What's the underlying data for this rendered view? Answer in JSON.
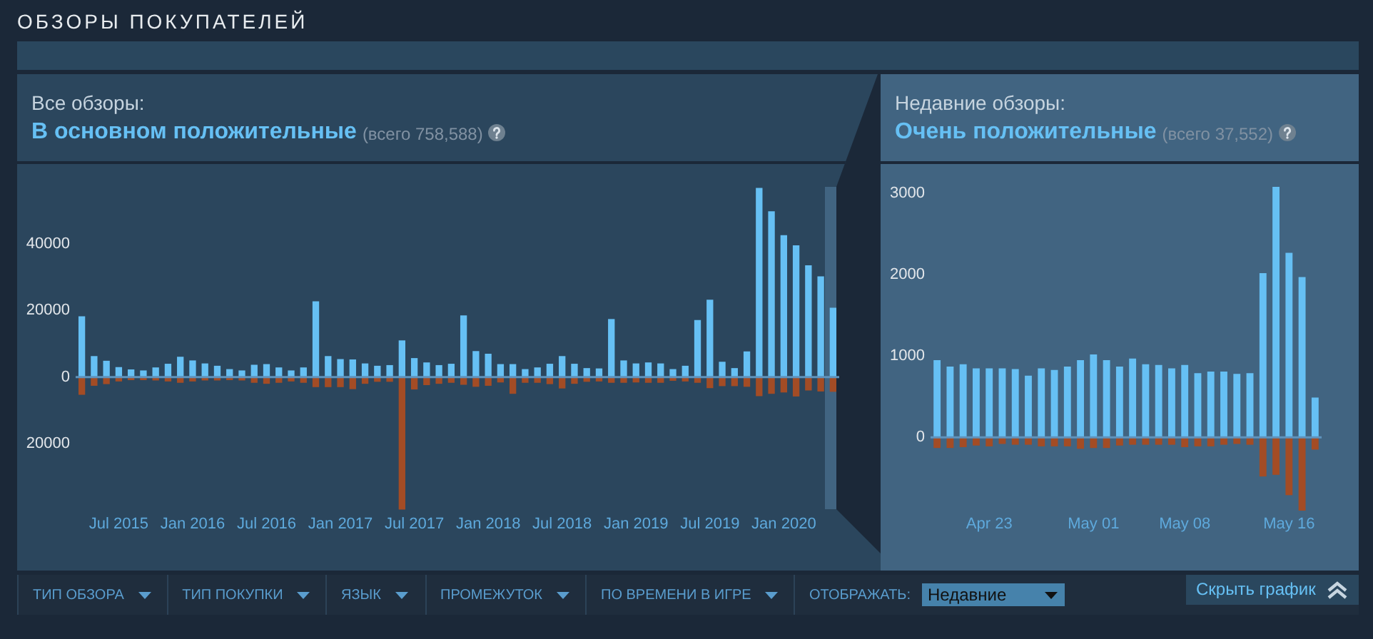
{
  "chart_data": [
    {
      "type": "other",
      "title": "ОБЗОРЫ ПОКУПАТЕЛЕЙ"
    },
    {
      "type": "bar",
      "stacked": true,
      "title": "Все обзоры:",
      "subtitle": "В основном положительные",
      "annotations": [
        "(всего 758,588)"
      ],
      "categories": [
        null,
        null,
        null,
        "Jul 2015",
        null,
        null,
        null,
        null,
        null,
        "Jan 2016",
        null,
        null,
        null,
        null,
        null,
        "Jul 2016",
        null,
        null,
        null,
        null,
        null,
        "Jan 2017",
        null,
        null,
        null,
        null,
        null,
        "Jul 2017",
        null,
        null,
        null,
        null,
        null,
        "Jan 2018",
        null,
        null,
        null,
        null,
        null,
        "Jul 2018",
        null,
        null,
        null,
        null,
        null,
        "Jan 2019",
        null,
        null,
        null,
        null,
        null,
        "Jul 2019",
        null,
        null,
        null,
        null,
        null,
        "Jan 2020",
        null,
        null,
        null,
        null
      ],
      "series": [
        {
          "color": "#66c0f4",
          "values": [
            18200,
            6300,
            4900,
            3000,
            2300,
            2000,
            2900,
            4000,
            6100,
            5000,
            4100,
            3400,
            2400,
            2000,
            3700,
            3900,
            2900,
            2000,
            2900,
            22700,
            6300,
            5400,
            5300,
            4100,
            3400,
            3600,
            11000,
            5700,
            4400,
            3600,
            4000,
            18500,
            7800,
            7000,
            3900,
            3900,
            2400,
            2900,
            4000,
            6300,
            4000,
            2700,
            2600,
            17400,
            5000,
            4100,
            4400,
            4100,
            2400,
            3400,
            17100,
            23200,
            4600,
            2700,
            7700,
            56700,
            49700,
            42500,
            39500,
            33500,
            30200,
            20800
          ]
        },
        {
          "color": "#a34c25",
          "values": [
            -5300,
            -2600,
            -2100,
            -1300,
            -900,
            -900,
            -1000,
            -1300,
            -1700,
            -1300,
            -1000,
            -1000,
            -900,
            -1000,
            -1700,
            -2000,
            -1700,
            -1300,
            -1700,
            -3000,
            -3000,
            -3000,
            -3600,
            -2000,
            -1400,
            -1400,
            -39700,
            -3700,
            -2400,
            -2000,
            -1700,
            -2300,
            -2900,
            -2600,
            -1600,
            -5000,
            -1700,
            -1700,
            -2100,
            -3400,
            -2000,
            -1400,
            -1300,
            -1700,
            -1700,
            -1600,
            -1700,
            -1700,
            -1100,
            -1300,
            -1700,
            -3300,
            -2700,
            -2700,
            -2900,
            -5700,
            -5000,
            -4600,
            -5800,
            -4000,
            -4300,
            -4400
          ]
        }
      ],
      "ylim": [
        -40000,
        57000
      ],
      "yticks": [
        {
          "value": -20000,
          "label": "20000"
        },
        0,
        20000,
        40000
      ],
      "ref_lines": [
        {
          "axis": "y",
          "value": 0,
          "color": "#5f93bd"
        }
      ]
    },
    {
      "type": "bar",
      "stacked": true,
      "title": "Недавние обзоры:",
      "subtitle": "Очень положительные",
      "annotations": [
        "(всего 37,552)"
      ],
      "categories": [
        null,
        null,
        null,
        null,
        "Apr 23",
        null,
        null,
        null,
        null,
        null,
        null,
        null,
        "May 01",
        null,
        null,
        null,
        null,
        null,
        null,
        "May 08",
        null,
        null,
        null,
        null,
        null,
        null,
        null,
        "May 16",
        null,
        null
      ],
      "series": [
        {
          "color": "#66c0f4",
          "values": [
            950,
            870,
            900,
            850,
            850,
            850,
            840,
            760,
            850,
            830,
            870,
            950,
            1020,
            950,
            870,
            970,
            900,
            890,
            850,
            890,
            790,
            810,
            810,
            780,
            790,
            2020,
            3080,
            2270,
            1970,
            490
          ]
        },
        {
          "color": "#a34c25",
          "values": [
            -130,
            -130,
            -120,
            -100,
            -110,
            -80,
            -90,
            -90,
            -110,
            -110,
            -110,
            -140,
            -130,
            -130,
            -100,
            -90,
            -90,
            -90,
            -90,
            -120,
            -110,
            -110,
            -90,
            -80,
            -90,
            -480,
            -460,
            -710,
            -900,
            -150
          ]
        }
      ],
      "ylim": [
        -900,
        3080
      ],
      "yticks": [
        0,
        1000,
        2000,
        3000
      ],
      "ref_lines": [
        {
          "axis": "y",
          "value": 0,
          "color": "#5f93bd"
        }
      ]
    },
    {
      "type": "other",
      "annotations": [
        "ТИП ОБЗОРА",
        "ТИП ПОКУПКИ",
        "ЯЗЫК",
        "ПРОМЕЖУТОК",
        "ПО ВРЕМЕНИ В ИГРЕ",
        "ОТОБРАЖАТЬ:",
        "Недавние",
        "Скрыть график"
      ]
    }
  ]
}
